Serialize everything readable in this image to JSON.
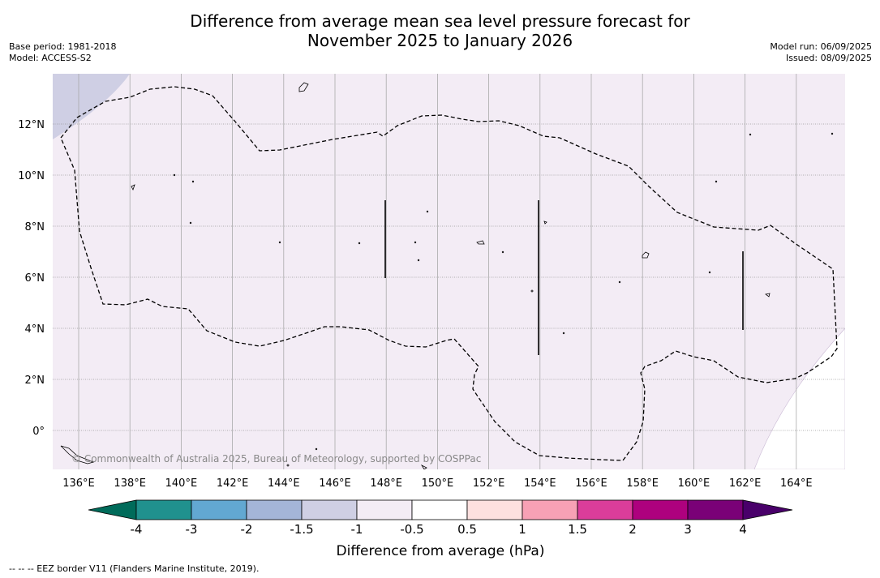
{
  "title_line1": "Difference from average mean sea level pressure forecast for",
  "title_line2": "November 2025 to January 2026",
  "base_period": "Base period: 1981-2018",
  "model": "Model: ACCESS-S2",
  "model_run": "Model run: 06/09/2025",
  "issued": "Issued: 08/09/2025",
  "copyright": "© Commonwealth of Australia 2025, Bureau of Meteorology, supported by COSPPac",
  "lat_labels": [
    "12°N",
    "10°N",
    "8°N",
    "6°N",
    "4°N",
    "2°N",
    "0°"
  ],
  "lon_labels": [
    "136°E",
    "138°E",
    "140°E",
    "142°E",
    "144°E",
    "146°E",
    "148°E",
    "150°E",
    "152°E",
    "154°E",
    "156°E",
    "158°E",
    "160°E",
    "162°E",
    "164°E"
  ],
  "colorbar": {
    "title": "Difference from average (hPa)",
    "ticks": [
      "-4",
      "-3",
      "-2",
      "-1.5",
      "-1",
      "-0.5",
      "0.5",
      "1",
      "1.5",
      "2",
      "3",
      "4"
    ],
    "colors": [
      "#006b5a",
      "#20918e",
      "#62a8d2",
      "#a4b5d8",
      "#cfcfe4",
      "#f3ecf5",
      "#ffffff",
      "#fde0df",
      "#f7a1b5",
      "#db3d9a",
      "#ae017e",
      "#7a0177",
      "#49006a"
    ]
  },
  "field_colors": {
    "main": "#f3ecf5",
    "negative": "#cfcfe4"
  },
  "footnote": "-- -- -- EEZ border V11 (Flanders Marine Institute, 2019)."
}
